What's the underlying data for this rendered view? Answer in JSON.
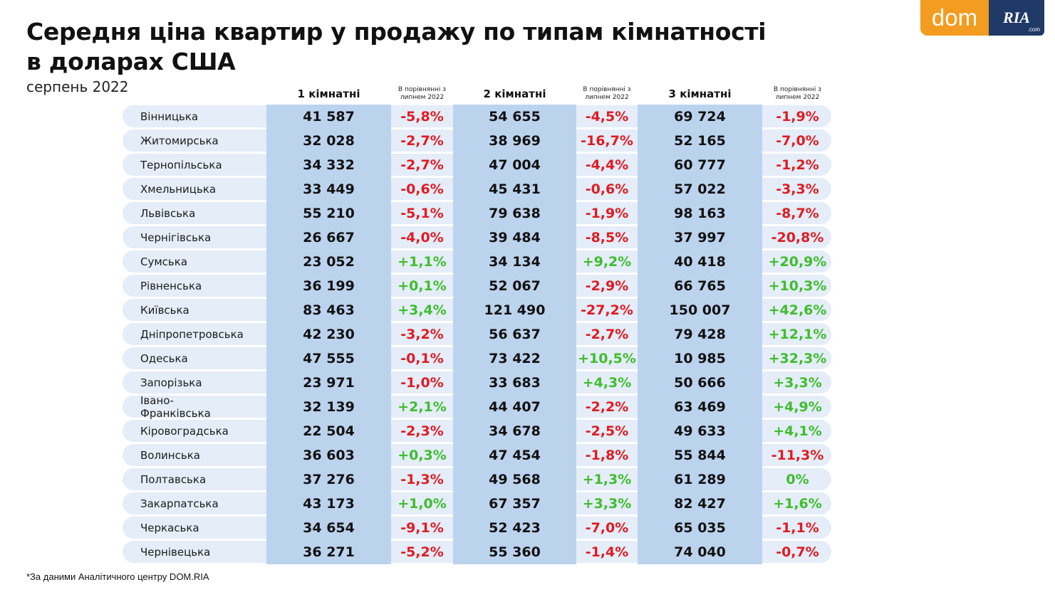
{
  "header": {
    "title_line1": "Середня ціна квартир у продажу по типам кімнатності",
    "title_line2": "в доларах США",
    "subtitle": "серпень 2022"
  },
  "logo": {
    "dom": "dom",
    "ria": "RIA",
    "com": ".com"
  },
  "footnote": "*За даними Аналітичного центру DOM.RIA",
  "chart_data": {
    "type": "table",
    "title": "Середня ціна квартир у продажу по типам кімнатності в доларах США",
    "subtitle": "серпень 2022",
    "columns": [
      "",
      "1 кімнатні",
      "В порівнянні з липнем 2022",
      "2 кімнатні",
      "В порівнянні з липнем 2022",
      "3 кімнатні",
      "В порівнянні з липнем 2022"
    ],
    "rows": [
      [
        "Вінницька",
        "41 587",
        "-5,8%",
        "54 655",
        "-4,5%",
        "69 724",
        "-1,9%"
      ],
      [
        "Житомирська",
        "32 028",
        "-2,7%",
        "38 969",
        "-16,7%",
        "52 165",
        "-7,0%"
      ],
      [
        "Тернопільська",
        "34 332",
        "-2,7%",
        "47 004",
        "-4,4%",
        "60 777",
        "-1,2%"
      ],
      [
        "Хмельницька",
        "33 449",
        "-0,6%",
        "45 431",
        "-0,6%",
        "57 022",
        "-3,3%"
      ],
      [
        "Львівська",
        "55 210",
        "-5,1%",
        "79 638",
        "-1,9%",
        "98 163",
        "-8,7%"
      ],
      [
        "Чернігівська",
        "26 667",
        "-4,0%",
        "39 484",
        "-8,5%",
        "37 997",
        "-20,8%"
      ],
      [
        "Сумська",
        "23 052",
        "+1,1%",
        "34 134",
        "+9,2%",
        "40 418",
        "+20,9%"
      ],
      [
        "Рівненська",
        "36 199",
        "+0,1%",
        "52 067",
        "-2,9%",
        "66 765",
        "+10,3%"
      ],
      [
        "Київська",
        "83 463",
        "+3,4%",
        "121 490",
        "-27,2%",
        "150 007",
        "+42,6%"
      ],
      [
        "Дніпропетровська",
        "42 230",
        "-3,2%",
        "56 637",
        "-2,7%",
        "79 428",
        "+12,1%"
      ],
      [
        "Одеська",
        "47 555",
        "-0,1%",
        "73 422",
        "+10,5%",
        "10 985",
        "+32,3%"
      ],
      [
        "Запорізька",
        "23 971",
        "-1,0%",
        "33 683",
        "+4,3%",
        "50 666",
        "+3,3%"
      ],
      [
        "Івано-Франківська",
        "32 139",
        "+2,1%",
        "44 407",
        "-2,2%",
        "63 469",
        "+4,9%"
      ],
      [
        "Кіровоградська",
        "22 504",
        "-2,3%",
        "34 678",
        "-2,5%",
        "49 633",
        "+4,1%"
      ],
      [
        "Волинська",
        "36 603",
        "+0,3%",
        "47 454",
        "-1,8%",
        "55 844",
        "-11,3%"
      ],
      [
        "Полтавська",
        "37 276",
        "-1,3%",
        "49 568",
        "+1,3%",
        "61 289",
        "0%"
      ],
      [
        "Закарпатська",
        "43 173",
        "+1,0%",
        "67 357",
        "+3,3%",
        "82 427",
        "+1,6%"
      ],
      [
        "Черкаська",
        "34 654",
        "-9,1%",
        "52 423",
        "-7,0%",
        "65 035",
        "-1,1%"
      ],
      [
        "Чернівецька",
        "36 271",
        "-5,2%",
        "55 360",
        "-1,4%",
        "74 040",
        "-0,7%"
      ]
    ]
  },
  "colors": {
    "negative": "#e01b22",
    "positive": "#3fbd2d",
    "row_background": "#e4edf8",
    "price_column_background": "#bcd3ee",
    "logo_orange": "#f39c1f",
    "logo_navy": "#1f3a67"
  }
}
